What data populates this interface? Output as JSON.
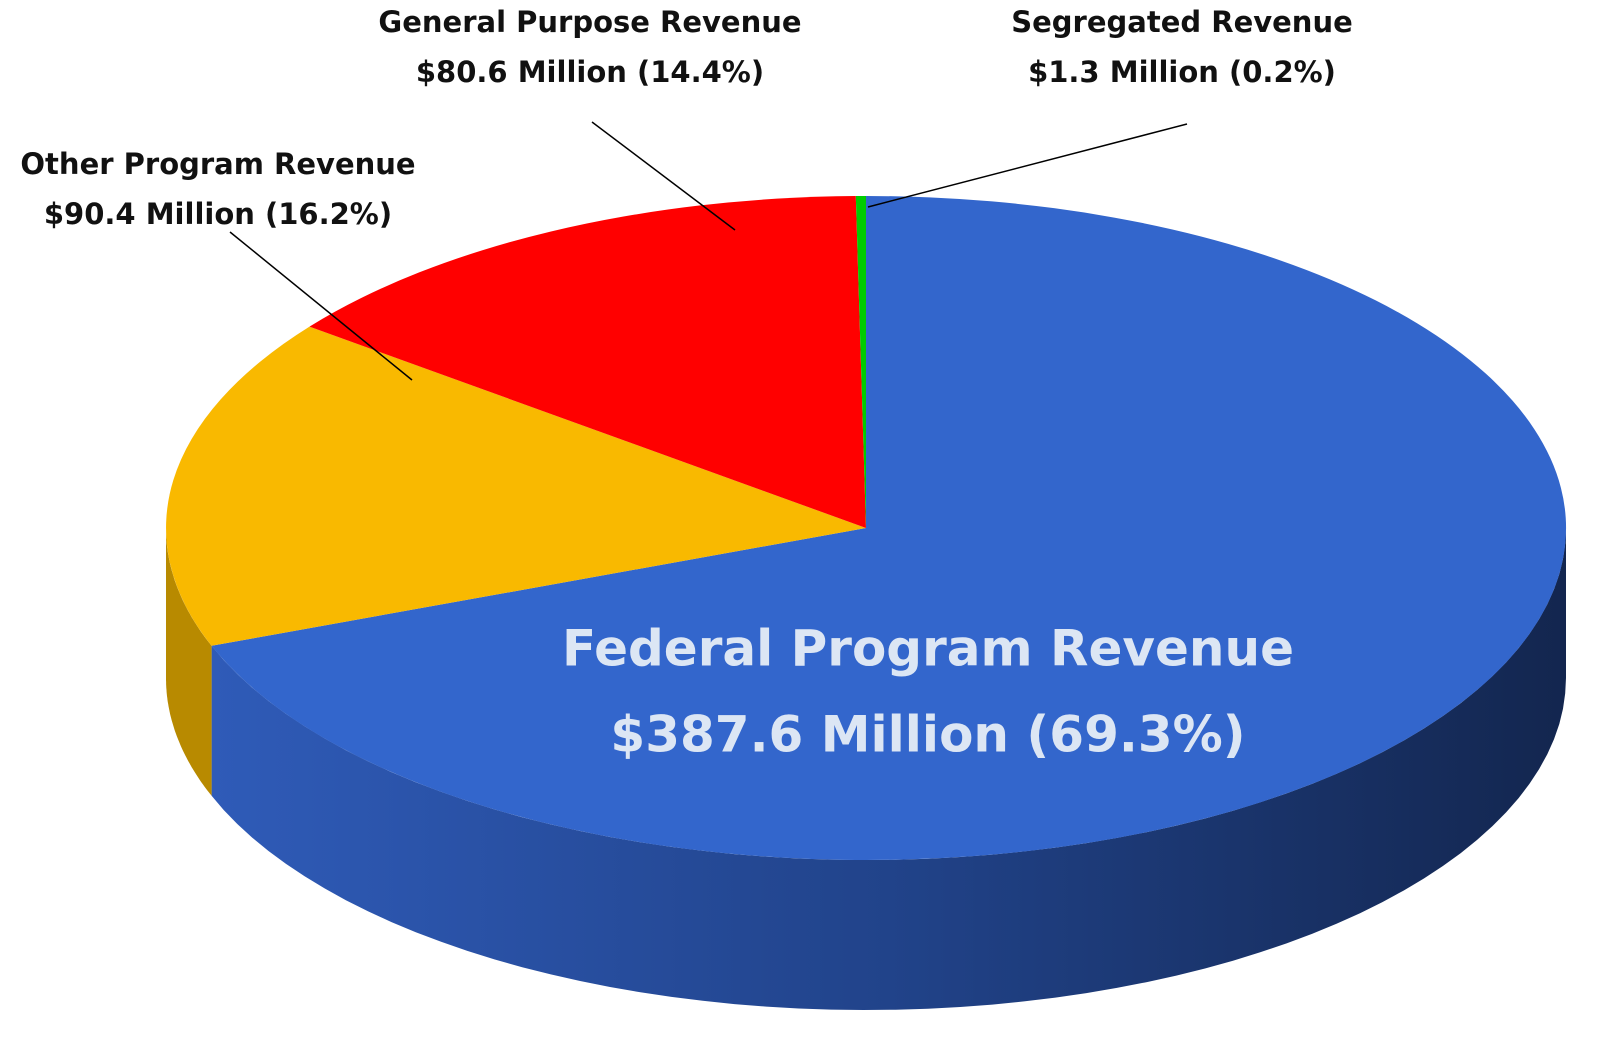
{
  "chart_data": {
    "type": "pie",
    "categories": [
      "Federal Program Revenue",
      "Other Program Revenue",
      "General Purpose Revenue",
      "Segregated Revenue"
    ],
    "values": [
      387.6,
      90.4,
      80.6,
      1.3
    ],
    "value_labels": [
      "$387.6 Million (69.3%)",
      "$90.4 Million (16.2%)",
      "$80.6 Million (14.4%)",
      "$1.3 Million (0.2%)"
    ],
    "colors": [
      "#3366cc",
      "#f9b900",
      "#ff0000",
      "#00cc00"
    ],
    "side_colors": [
      "#23468f",
      "#b88a00",
      "#b00000",
      "#008800"
    ]
  }
}
